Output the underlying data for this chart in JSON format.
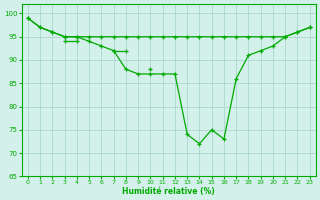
{
  "xlabel": "Humidité relative (%)",
  "background_color": "#d4f0eb",
  "grid_color": "#aad8cc",
  "line_color": "#00aa00",
  "ylim": [
    65,
    102
  ],
  "xlim": [
    -0.5,
    23.5
  ],
  "yticks": [
    65,
    70,
    75,
    80,
    85,
    90,
    95,
    100
  ],
  "xticks": [
    0,
    1,
    2,
    3,
    4,
    5,
    6,
    7,
    8,
    9,
    10,
    11,
    12,
    13,
    14,
    15,
    16,
    17,
    18,
    19,
    20,
    21,
    22,
    23
  ],
  "series": [
    [
      99,
      97,
      96,
      95,
      95,
      95,
      95,
      95,
      95,
      95,
      95,
      95,
      95,
      95,
      95,
      95,
      95,
      95,
      95,
      95,
      95,
      95,
      96,
      97
    ],
    [
      99,
      97,
      96,
      95,
      95,
      94,
      93,
      92,
      88,
      87,
      87,
      87,
      87,
      74,
      72,
      75,
      73,
      86,
      91,
      92,
      93,
      95,
      96,
      97
    ],
    [
      null,
      null,
      null,
      94,
      94,
      null,
      null,
      92,
      92,
      null,
      88,
      null,
      null,
      null,
      null,
      null,
      null,
      null,
      null,
      null,
      null,
      null,
      null,
      null
    ]
  ]
}
